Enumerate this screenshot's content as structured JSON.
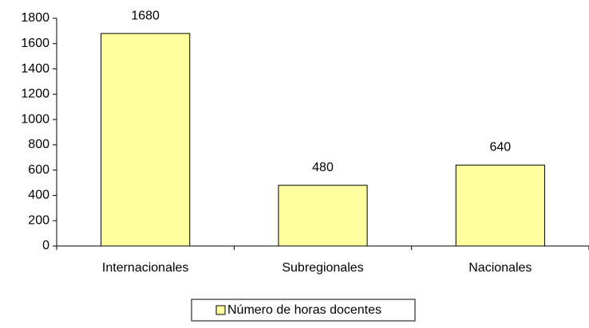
{
  "chart_data": {
    "type": "bar",
    "categories": [
      "Internacionales",
      "Subregionales",
      "Nacionales"
    ],
    "series": [
      {
        "name": "Número de horas docentes",
        "color": "#ffffa0",
        "values": [
          1680,
          480,
          640
        ]
      }
    ],
    "ylim": [
      0,
      1800
    ],
    "yticks": [
      0,
      200,
      400,
      600,
      800,
      1000,
      1200,
      1400,
      1600,
      1800
    ],
    "grid": false,
    "legend": "bottom"
  }
}
